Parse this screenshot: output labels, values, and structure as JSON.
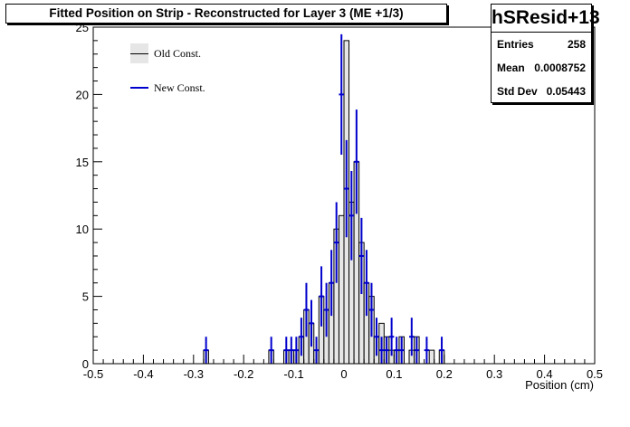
{
  "title": "Fitted Position on Strip - Reconstructed for Layer 3  (ME +1/3)",
  "stats": {
    "name": "hSResid+13",
    "rows": [
      {
        "label": "Entries",
        "value": "258"
      },
      {
        "label": "Mean",
        "value": "0.0008752"
      },
      {
        "label": "Std Dev",
        "value": "0.05443"
      }
    ]
  },
  "legend": [
    {
      "label": "Old Const.",
      "style": "filled-histogram"
    },
    {
      "label": "New Const.",
      "style": "error-bar"
    }
  ],
  "colors": {
    "fill": "#e6e6e6",
    "outline": "#000000",
    "new": "#0000cc"
  },
  "chart_data": {
    "type": "bar",
    "title": "Fitted Position on Strip - Reconstructed for Layer 3  (ME +1/3)",
    "xlabel": "Position (cm)",
    "ylabel": "",
    "xlim": [
      -0.5,
      0.5
    ],
    "ylim": [
      0,
      25
    ],
    "bin_width": 0.01,
    "x_ticks": [
      "-0.5",
      "-0.4",
      "-0.3",
      "-0.2",
      "-0.1",
      "0",
      "0.1",
      "0.2",
      "0.3",
      "0.4",
      "0.5"
    ],
    "y_ticks": [
      "0",
      "5",
      "10",
      "15",
      "20",
      "25"
    ],
    "grid": false,
    "legend_position": "top-left",
    "series": [
      {
        "name": "Old Const.",
        "style": "filled-histogram",
        "bins": [
          {
            "x": -0.275,
            "y": 1
          },
          {
            "x": -0.145,
            "y": 1
          },
          {
            "x": -0.115,
            "y": 1
          },
          {
            "x": -0.105,
            "y": 1
          },
          {
            "x": -0.095,
            "y": 1
          },
          {
            "x": -0.085,
            "y": 2
          },
          {
            "x": -0.075,
            "y": 4
          },
          {
            "x": -0.065,
            "y": 3
          },
          {
            "x": -0.055,
            "y": 1
          },
          {
            "x": -0.045,
            "y": 5
          },
          {
            "x": -0.035,
            "y": 4
          },
          {
            "x": -0.025,
            "y": 6
          },
          {
            "x": -0.015,
            "y": 10
          },
          {
            "x": -0.005,
            "y": 11
          },
          {
            "x": 0.005,
            "y": 24
          },
          {
            "x": 0.015,
            "y": 12
          },
          {
            "x": 0.025,
            "y": 15
          },
          {
            "x": 0.035,
            "y": 9
          },
          {
            "x": 0.045,
            "y": 6
          },
          {
            "x": 0.055,
            "y": 5
          },
          {
            "x": 0.065,
            "y": 2
          },
          {
            "x": 0.075,
            "y": 3
          },
          {
            "x": 0.085,
            "y": 2
          },
          {
            "x": 0.095,
            "y": 1
          },
          {
            "x": 0.105,
            "y": 1
          },
          {
            "x": 0.115,
            "y": 2
          },
          {
            "x": 0.135,
            "y": 1
          },
          {
            "x": 0.145,
            "y": 2
          },
          {
            "x": 0.175,
            "y": 1
          },
          {
            "x": 0.195,
            "y": 1
          }
        ]
      },
      {
        "name": "New Const.",
        "style": "error-bar",
        "points": [
          {
            "x": -0.275,
            "y": 1
          },
          {
            "x": -0.145,
            "y": 1
          },
          {
            "x": -0.115,
            "y": 1
          },
          {
            "x": -0.105,
            "y": 1
          },
          {
            "x": -0.095,
            "y": 1
          },
          {
            "x": -0.085,
            "y": 2
          },
          {
            "x": -0.075,
            "y": 4
          },
          {
            "x": -0.065,
            "y": 3
          },
          {
            "x": -0.055,
            "y": 1
          },
          {
            "x": -0.045,
            "y": 5
          },
          {
            "x": -0.035,
            "y": 4
          },
          {
            "x": -0.025,
            "y": 6
          },
          {
            "x": -0.015,
            "y": 9
          },
          {
            "x": -0.005,
            "y": 20
          },
          {
            "x": 0.005,
            "y": 13
          },
          {
            "x": 0.015,
            "y": 11
          },
          {
            "x": 0.025,
            "y": 15
          },
          {
            "x": 0.035,
            "y": 8
          },
          {
            "x": 0.045,
            "y": 6
          },
          {
            "x": 0.055,
            "y": 4
          },
          {
            "x": 0.065,
            "y": 2
          },
          {
            "x": 0.075,
            "y": 1
          },
          {
            "x": 0.085,
            "y": 1
          },
          {
            "x": 0.095,
            "y": 2
          },
          {
            "x": 0.105,
            "y": 1
          },
          {
            "x": 0.115,
            "y": 1
          },
          {
            "x": 0.135,
            "y": 2
          },
          {
            "x": 0.145,
            "y": 1
          },
          {
            "x": 0.165,
            "y": 1
          },
          {
            "x": 0.195,
            "y": 1
          }
        ]
      }
    ]
  }
}
